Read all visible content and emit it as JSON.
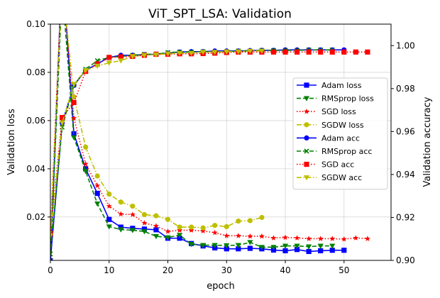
{
  "chart_data": {
    "type": "line",
    "title": "ViT_SPT_LSA: Validation",
    "xlabel": "epoch",
    "ylabel_left": "Validation loss",
    "ylabel_right": "Validation accuracy",
    "xlim": [
      0,
      58
    ],
    "ylim_left": [
      0.002,
      0.1
    ],
    "ylim_right": [
      0.9,
      1.01
    ],
    "x_ticks": [
      0,
      10,
      20,
      30,
      40,
      50
    ],
    "y_left_ticks": [
      0.02,
      0.04,
      0.06,
      0.08,
      0.1
    ],
    "y_left_tick_labels": [
      "0.02",
      "0.04",
      "0.06",
      "0.08",
      "0.10"
    ],
    "y_right_ticks": [
      0.9,
      0.92,
      0.94,
      0.96,
      0.98,
      1.0
    ],
    "y_right_tick_labels": [
      "0.90",
      "0.92",
      "0.94",
      "0.96",
      "0.98",
      "1.00"
    ],
    "grid": true,
    "legend_position": "center-right",
    "series": [
      {
        "name": "Adam loss",
        "axis": "left",
        "color": "#0000ff",
        "dash": "solid",
        "marker": "square",
        "x": [
          0,
          2,
          4,
          6,
          8,
          10,
          12,
          14,
          16,
          18,
          20,
          22,
          24,
          26,
          28,
          30,
          32,
          34,
          36,
          38,
          40,
          42,
          44,
          46,
          48,
          50
        ],
        "y": [
          0.0005,
          0.125,
          0.0545,
          0.04,
          0.0298,
          0.019,
          0.0158,
          0.0153,
          0.015,
          0.0147,
          0.0112,
          0.0112,
          0.009,
          0.008,
          0.0072,
          0.0068,
          0.0068,
          0.007,
          0.0068,
          0.0063,
          0.006,
          0.0065,
          0.0057,
          0.006,
          0.0062,
          0.0062
        ]
      },
      {
        "name": "RMSprop loss",
        "axis": "left",
        "color": "#008000",
        "dash": "dashed",
        "marker": "triangle-down",
        "x": [
          0,
          2,
          4,
          6,
          8,
          10,
          12,
          14,
          16,
          18,
          20,
          22,
          24,
          26,
          28,
          30,
          32,
          34,
          36,
          38,
          40,
          42,
          44,
          46,
          48
        ],
        "y": [
          0.002,
          0.115,
          0.053,
          0.039,
          0.0255,
          0.016,
          0.0148,
          0.0145,
          0.014,
          0.012,
          0.0115,
          0.0125,
          0.0087,
          0.0083,
          0.0083,
          0.0082,
          0.0083,
          0.0095,
          0.0075,
          0.0075,
          0.008,
          0.008,
          0.0077,
          0.008,
          0.008
        ]
      },
      {
        "name": "SGD loss",
        "axis": "left",
        "color": "#ff0000",
        "dash": "dotted",
        "marker": "star",
        "x": [
          0,
          2,
          4,
          6,
          8,
          10,
          12,
          14,
          16,
          18,
          20,
          22,
          24,
          26,
          28,
          30,
          32,
          34,
          36,
          38,
          40,
          42,
          44,
          46,
          48,
          50,
          52,
          54
        ],
        "y": [
          0.013,
          0.122,
          0.061,
          0.042,
          0.033,
          0.0245,
          0.0212,
          0.021,
          0.0175,
          0.0163,
          0.014,
          0.0145,
          0.0145,
          0.0142,
          0.0135,
          0.0122,
          0.0122,
          0.012,
          0.012,
          0.0113,
          0.0115,
          0.0113,
          0.011,
          0.011,
          0.011,
          0.0108,
          0.0113,
          0.011
        ]
      },
      {
        "name": "SGDW loss",
        "axis": "left",
        "color": "#bfbf00",
        "dash": "dashdot",
        "marker": "circle",
        "x": [
          0,
          2,
          4,
          6,
          8,
          10,
          12,
          14,
          16,
          18,
          20,
          22,
          24,
          26,
          28,
          30,
          32,
          34,
          36
        ],
        "y": [
          0.013,
          0.118,
          0.0698,
          0.049,
          0.037,
          0.0295,
          0.0262,
          0.0245,
          0.021,
          0.0205,
          0.019,
          0.0158,
          0.0158,
          0.0155,
          0.0165,
          0.016,
          0.0183,
          0.0185,
          0.0198
        ]
      },
      {
        "name": "Adam acc",
        "axis": "right",
        "color": "#0000ff",
        "dash": "solid",
        "marker": "circle",
        "x": [
          0,
          2,
          4,
          6,
          8,
          10,
          12,
          14,
          16,
          18,
          20,
          22,
          24,
          26,
          28,
          30,
          32,
          34,
          36,
          38,
          40,
          42,
          44,
          46,
          48,
          50
        ],
        "y": [
          0.9,
          0.964,
          0.9815,
          0.9885,
          0.9915,
          0.9945,
          0.9955,
          0.9955,
          0.9958,
          0.996,
          0.9965,
          0.997,
          0.9972,
          0.9972,
          0.9975,
          0.9975,
          0.9975,
          0.9977,
          0.9978,
          0.9978,
          0.998,
          0.998,
          0.998,
          0.998,
          0.998,
          0.998
        ]
      },
      {
        "name": "RMSprop acc",
        "axis": "right",
        "color": "#008000",
        "dash": "dashed",
        "marker": "x",
        "x": [
          0,
          2,
          4,
          6,
          8,
          10,
          12,
          14,
          16,
          18,
          20,
          22,
          24,
          26,
          28,
          30,
          32,
          34,
          36,
          38,
          40,
          42,
          44,
          46,
          48
        ],
        "y": [
          0.903,
          0.962,
          0.9815,
          0.989,
          0.993,
          0.9945,
          0.995,
          0.9955,
          0.996,
          0.996,
          0.9968,
          0.997,
          0.997,
          0.9972,
          0.997,
          0.9972,
          0.9975,
          0.9975,
          0.9978,
          0.9978,
          0.9978,
          0.9978,
          0.998,
          0.998,
          0.998
        ]
      },
      {
        "name": "SGD acc",
        "axis": "right",
        "color": "#ff0000",
        "dash": "dotted",
        "marker": "square",
        "x": [
          0,
          2,
          4,
          6,
          8,
          10,
          12,
          14,
          16,
          18,
          20,
          22,
          24,
          26,
          28,
          30,
          32,
          34,
          36,
          38,
          40,
          42,
          44,
          46,
          48,
          50,
          52,
          54
        ],
        "y": [
          0.9125,
          0.9665,
          0.9735,
          0.988,
          0.9915,
          0.9945,
          0.9948,
          0.995,
          0.9955,
          0.996,
          0.996,
          0.9962,
          0.9962,
          0.9963,
          0.9965,
          0.9968,
          0.997,
          0.997,
          0.997,
          0.997,
          0.997,
          0.997,
          0.997,
          0.997,
          0.997,
          0.997,
          0.997,
          0.997
        ]
      },
      {
        "name": "SGDW acc",
        "axis": "right",
        "color": "#bfbf00",
        "dash": "dashdot",
        "marker": "triangle-down",
        "x": [
          0,
          2,
          4,
          6,
          8,
          10,
          12,
          14,
          16,
          18,
          20,
          22,
          24,
          26,
          28,
          30,
          32,
          34,
          36
        ],
        "y": [
          0.9115,
          0.964,
          0.982,
          0.9885,
          0.9905,
          0.992,
          0.993,
          0.995,
          0.9955,
          0.9958,
          0.9962,
          0.9965,
          0.9965,
          0.997,
          0.997,
          0.9972,
          0.9972,
          0.9975,
          0.9975
        ]
      }
    ]
  }
}
